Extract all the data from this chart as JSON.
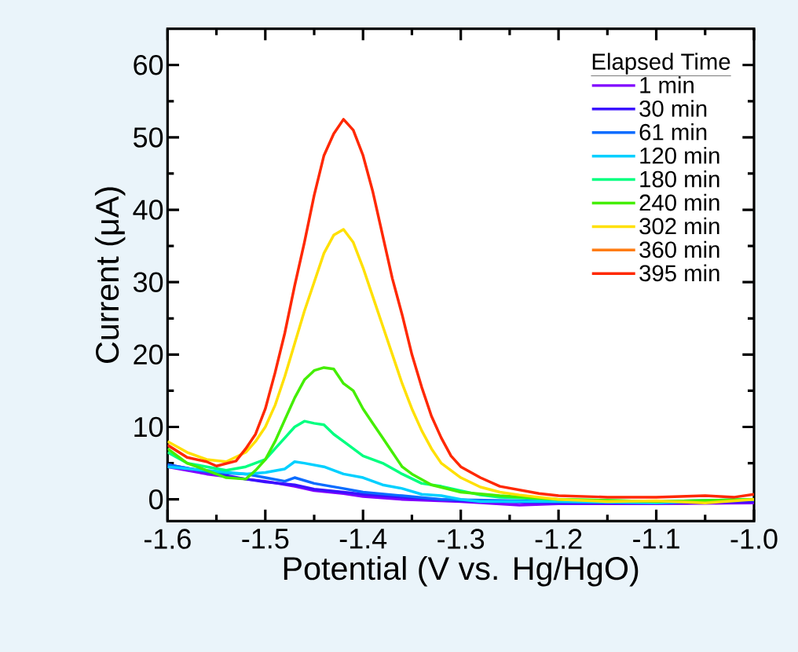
{
  "chart_data": {
    "type": "line",
    "xlabel": "Potential (V vs. Hg/HgO)",
    "ylabel": "Current (μA)",
    "legend_title": "Elapsed Time",
    "legend": "top right",
    "line_style": "solid",
    "xlim": [
      -1.6,
      -1.0
    ],
    "ylim": [
      -3,
      65
    ],
    "xticks": [
      -1.6,
      -1.5,
      -1.4,
      -1.3,
      -1.2,
      -1.1,
      {
        "value": -1.0,
        "label": "-1.0"
      }
    ],
    "yticks": [
      0,
      10,
      20,
      30,
      40,
      50,
      60
    ],
    "series": [
      {
        "name": "1 min",
        "color": "#8000ff",
        "x": [
          -1.6,
          -1.56,
          -1.52,
          -1.5,
          -1.47,
          -1.45,
          -1.42,
          -1.4,
          -1.36,
          -1.3,
          -1.24,
          -1.2,
          -1.1,
          -1.0
        ],
        "values": [
          4.5,
          3.5,
          2.8,
          2.5,
          1.8,
          1.2,
          0.8,
          0.4,
          0,
          -0.3,
          -0.8,
          -0.6,
          -0.6,
          -0.5
        ]
      },
      {
        "name": "30 min",
        "color": "#3a10ff",
        "x": [
          -1.6,
          -1.56,
          -1.52,
          -1.5,
          -1.47,
          -1.45,
          -1.42,
          -1.4,
          -1.36,
          -1.3,
          -1.2,
          -1.1,
          -1.0
        ],
        "values": [
          4.8,
          3.8,
          2.8,
          2.4,
          2.0,
          1.4,
          1.0,
          0.7,
          0.3,
          -0.2,
          -0.5,
          -0.5,
          -0.3
        ]
      },
      {
        "name": "61 min",
        "color": "#0a6cff",
        "x": [
          -1.6,
          -1.56,
          -1.52,
          -1.5,
          -1.48,
          -1.47,
          -1.45,
          -1.42,
          -1.4,
          -1.36,
          -1.32,
          -1.2,
          -1.1,
          -1.0
        ],
        "values": [
          4.8,
          3.8,
          3.5,
          3.0,
          2.5,
          3.0,
          2.2,
          1.5,
          1.0,
          0.5,
          0,
          -0.3,
          -0.3,
          0
        ]
      },
      {
        "name": "120 min",
        "color": "#00d0ff",
        "x": [
          -1.6,
          -1.56,
          -1.52,
          -1.5,
          -1.48,
          -1.47,
          -1.46,
          -1.44,
          -1.42,
          -1.4,
          -1.38,
          -1.36,
          -1.34,
          -1.32,
          -1.3,
          -1.28,
          -1.2,
          -1.1,
          -1.0
        ],
        "values": [
          4.5,
          4.0,
          3.5,
          3.7,
          4.2,
          5.2,
          5.0,
          4.5,
          3.5,
          3.0,
          2.0,
          1.5,
          0.7,
          0.5,
          0,
          -0.3,
          -0.3,
          -0.5,
          0
        ]
      },
      {
        "name": "180 min",
        "color": "#00ff80",
        "x": [
          -1.6,
          -1.58,
          -1.56,
          -1.54,
          -1.52,
          -1.5,
          -1.49,
          -1.48,
          -1.47,
          -1.46,
          -1.45,
          -1.44,
          -1.43,
          -1.42,
          -1.41,
          -1.4,
          -1.38,
          -1.36,
          -1.34,
          -1.32,
          -1.3,
          -1.28,
          -1.26,
          -1.2,
          -1.1,
          -1.0
        ],
        "values": [
          6.5,
          5.0,
          4.5,
          4.0,
          4.5,
          5.5,
          7.0,
          8.5,
          10.0,
          10.8,
          10.5,
          10.3,
          9.0,
          8.0,
          7.0,
          6.0,
          5.0,
          3.5,
          2.2,
          1.8,
          1.2,
          0.6,
          0.3,
          0,
          -0.3,
          0
        ]
      },
      {
        "name": "240 min",
        "color": "#44ee00",
        "x": [
          -1.6,
          -1.58,
          -1.56,
          -1.54,
          -1.52,
          -1.51,
          -1.5,
          -1.49,
          -1.48,
          -1.47,
          -1.46,
          -1.45,
          -1.44,
          -1.43,
          -1.42,
          -1.41,
          -1.4,
          -1.39,
          -1.38,
          -1.37,
          -1.36,
          -1.35,
          -1.33,
          -1.3,
          -1.26,
          -1.2,
          -1.1,
          -1.0
        ],
        "values": [
          7.0,
          5.0,
          4.0,
          3.0,
          2.8,
          4.0,
          5.5,
          8.0,
          11.0,
          14.0,
          16.5,
          17.8,
          18.2,
          18.0,
          16.0,
          15.0,
          12.5,
          10.5,
          8.5,
          6.5,
          4.5,
          3.5,
          2.0,
          1.0,
          0.5,
          0,
          -0.3,
          0
        ]
      },
      {
        "name": "302 min",
        "color": "#ffe000",
        "x": [
          -1.6,
          -1.58,
          -1.56,
          -1.54,
          -1.52,
          -1.51,
          -1.5,
          -1.49,
          -1.48,
          -1.47,
          -1.46,
          -1.45,
          -1.44,
          -1.43,
          -1.42,
          -1.41,
          -1.4,
          -1.39,
          -1.38,
          -1.37,
          -1.36,
          -1.35,
          -1.34,
          -1.33,
          -1.32,
          -1.3,
          -1.28,
          -1.26,
          -1.24,
          -1.2,
          -1.15,
          -1.1,
          -1.05,
          -1.0
        ],
        "values": [
          8.0,
          6.5,
          5.5,
          5.2,
          6.5,
          8.0,
          10.0,
          13.0,
          17.0,
          21.5,
          26.0,
          30.0,
          34.0,
          36.5,
          37.3,
          35.5,
          32.0,
          28.0,
          24.0,
          20.0,
          16.0,
          12.5,
          9.5,
          7.0,
          5.0,
          3.0,
          1.7,
          1.0,
          0.6,
          0,
          -0.3,
          -0.2,
          -0.5,
          0
        ]
      },
      {
        "name": "360 min",
        "color": "#ff7c10",
        "values": [
          null
        ]
      },
      {
        "name": "395 min",
        "color": "#ff2800",
        "x": [
          -1.6,
          -1.58,
          -1.56,
          -1.55,
          -1.53,
          -1.52,
          -1.51,
          -1.5,
          -1.49,
          -1.48,
          -1.47,
          -1.46,
          -1.45,
          -1.44,
          -1.43,
          -1.42,
          -1.41,
          -1.4,
          -1.39,
          -1.38,
          -1.37,
          -1.36,
          -1.35,
          -1.34,
          -1.33,
          -1.32,
          -1.31,
          -1.3,
          -1.28,
          -1.26,
          -1.24,
          -1.22,
          -1.2,
          -1.15,
          -1.1,
          -1.05,
          -1.02,
          -1.0
        ],
        "values": [
          7.5,
          5.8,
          5.2,
          4.6,
          5.3,
          7.0,
          9.0,
          12.5,
          17.5,
          23.0,
          29.5,
          35.5,
          42.0,
          47.5,
          50.5,
          52.5,
          51.0,
          47.5,
          42.5,
          36.5,
          30.5,
          25.5,
          20.0,
          15.5,
          11.5,
          8.5,
          6.0,
          4.5,
          3.0,
          1.8,
          1.3,
          0.8,
          0.5,
          0.3,
          0.3,
          0.5,
          0.3,
          0.7
        ]
      }
    ]
  }
}
